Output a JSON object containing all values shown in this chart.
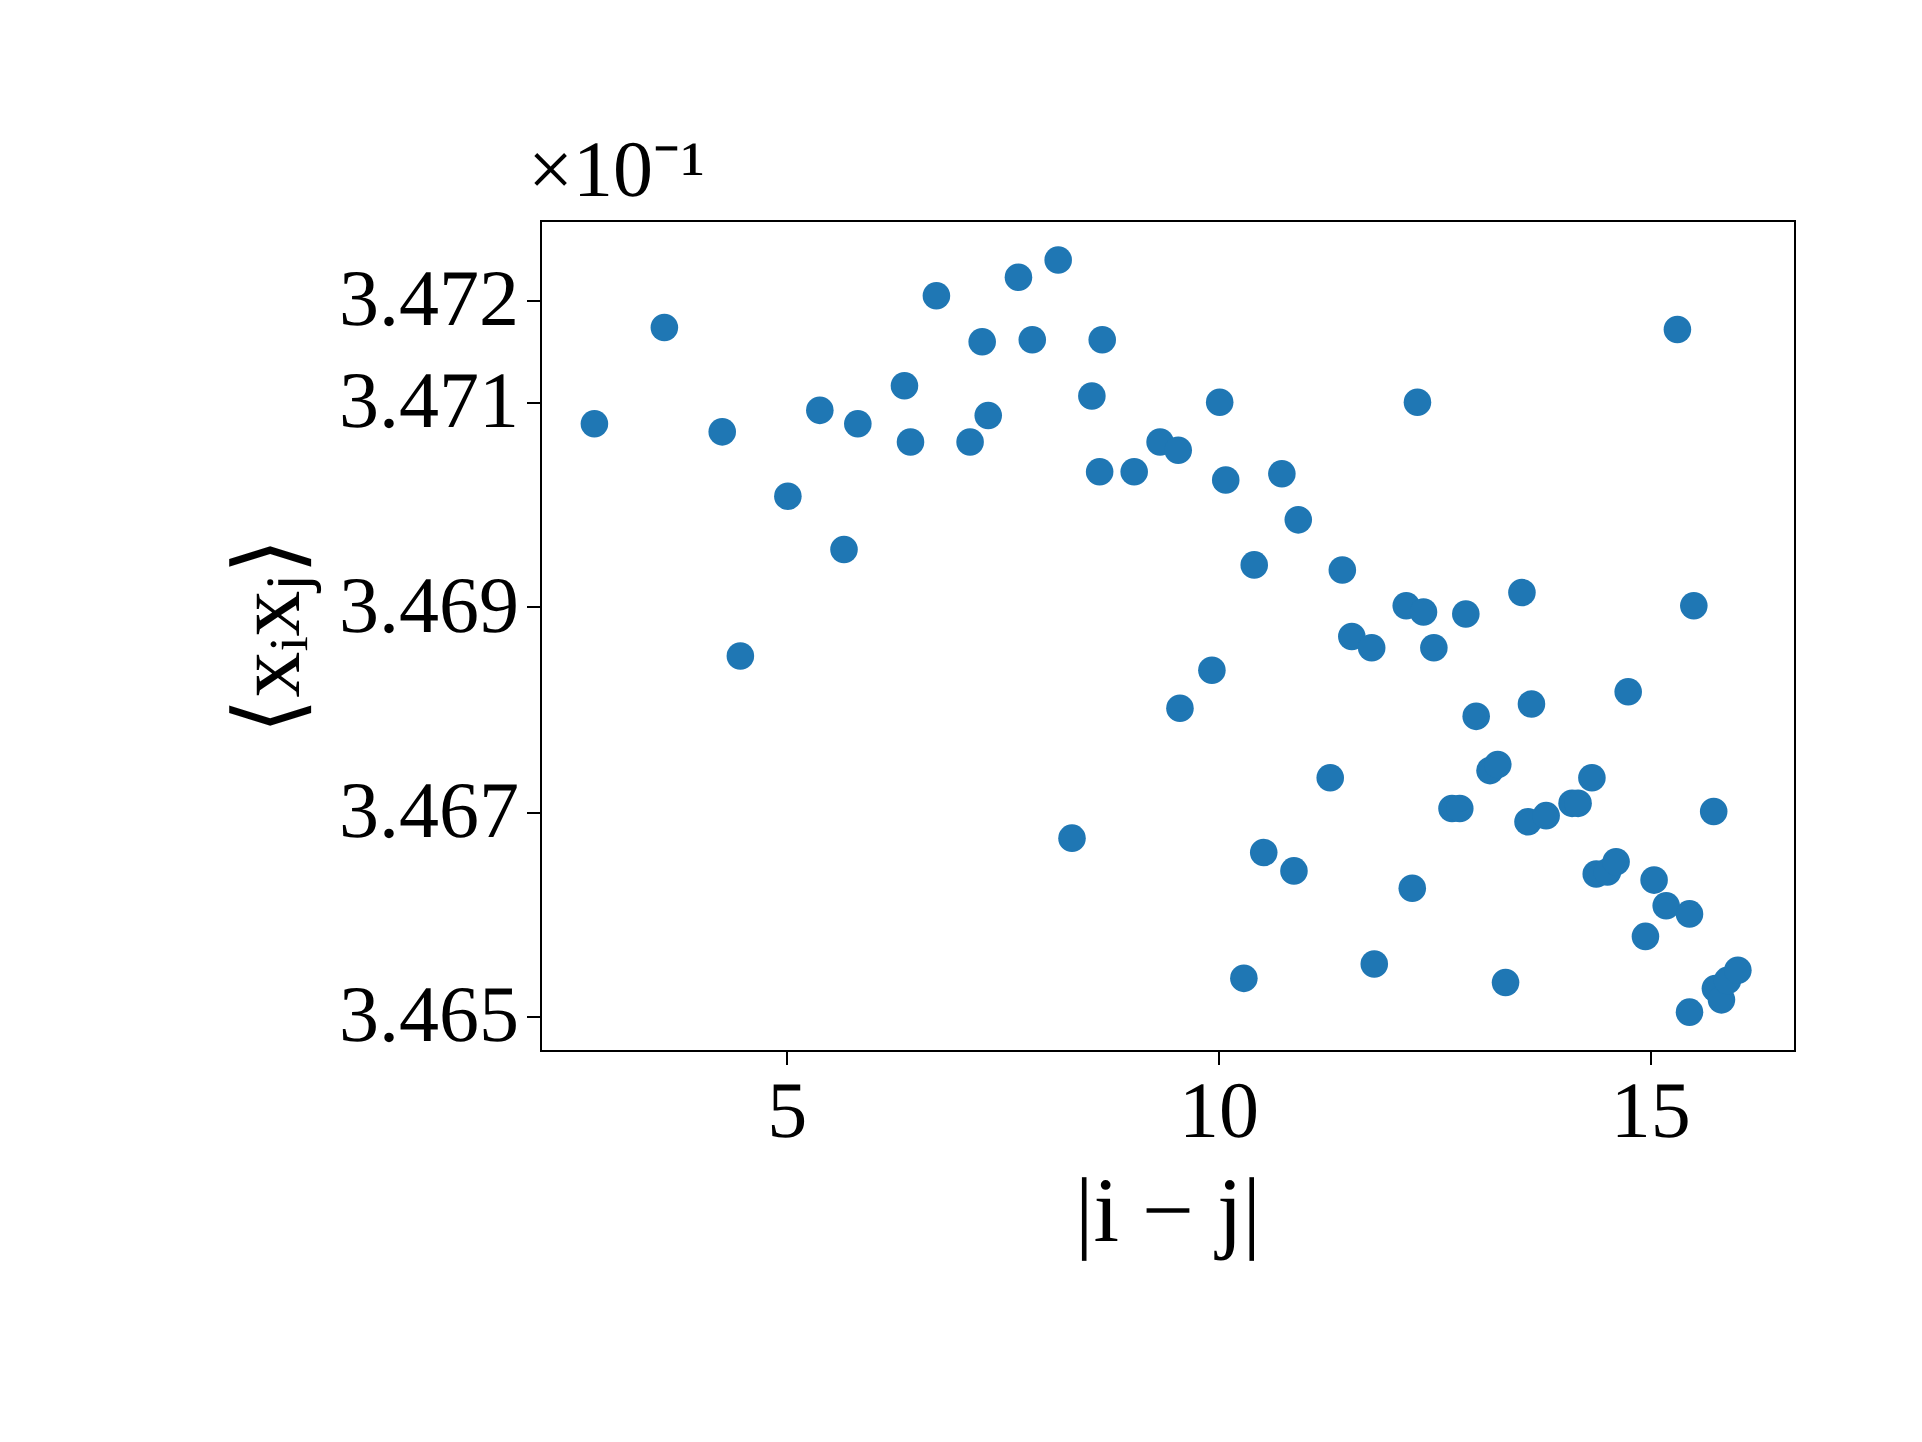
{
  "chart_data": {
    "type": "scatter",
    "xlabel": "|i − j|",
    "ylabel": "⟨xᵢxⱼ⟩",
    "annotations": [
      "×10⁻¹"
    ],
    "marker": "circle",
    "xlim": [
      2.15,
      16.67
    ],
    "ylim": [
      3.46467,
      3.47278
    ],
    "xticks": [
      5,
      10,
      15
    ],
    "yticks": [
      3.465,
      3.467,
      3.469,
      3.471,
      3.472
    ],
    "x": [
      2.78,
      3.59,
      4.26,
      4.47,
      5.02,
      5.39,
      5.67,
      5.83,
      6.37,
      6.44,
      6.74,
      7.13,
      7.27,
      7.34,
      7.69,
      7.85,
      8.15,
      8.31,
      8.54,
      8.63,
      8.66,
      9.03,
      9.33,
      9.54,
      9.56,
      9.93,
      10.02,
      10.09,
      10.3,
      10.42,
      10.53,
      10.74,
      10.88,
      10.93,
      11.3,
      11.44,
      11.55,
      11.78,
      11.81,
      12.18,
      12.25,
      12.31,
      12.38,
      12.5,
      12.71,
      12.8,
      12.87,
      12.99,
      13.15,
      13.24,
      13.33,
      13.52,
      13.59,
      13.63,
      13.8,
      14.1,
      14.17,
      14.33,
      14.38,
      14.51,
      14.61,
      14.75,
      14.95,
      15.05,
      15.19,
      15.32,
      15.46,
      15.46,
      15.51,
      15.74,
      15.76,
      15.83,
      15.9,
      16.02
    ],
    "series": [
      {
        "color": "#1f77b4",
        "values": [
          3.47079,
          3.47173,
          3.47071,
          3.46852,
          3.47008,
          3.47092,
          3.46956,
          3.47079,
          3.47116,
          3.47061,
          3.47204,
          3.47061,
          3.47159,
          3.47087,
          3.47222,
          3.47161,
          3.47239,
          3.46674,
          3.47106,
          3.47032,
          3.47161,
          3.47032,
          3.47061,
          3.47053,
          3.46801,
          3.46838,
          3.471,
          3.47024,
          3.46537,
          3.46941,
          3.4666,
          3.4703,
          3.46642,
          3.46985,
          3.46733,
          3.46936,
          3.46871,
          3.4686,
          3.46551,
          3.46901,
          3.46625,
          3.471,
          3.46895,
          3.4686,
          3.46703,
          3.46703,
          3.46893,
          3.46793,
          3.4674,
          3.46746,
          3.46533,
          3.46914,
          3.4669,
          3.46805,
          3.46696,
          3.46708,
          3.46708,
          3.46733,
          3.46639,
          3.46641,
          3.46651,
          3.46817,
          3.46578,
          3.46633,
          3.46608,
          3.47171,
          3.466,
          3.46504,
          3.46901,
          3.467,
          3.46527,
          3.46516,
          3.46535,
          3.46545
        ]
      }
    ]
  }
}
